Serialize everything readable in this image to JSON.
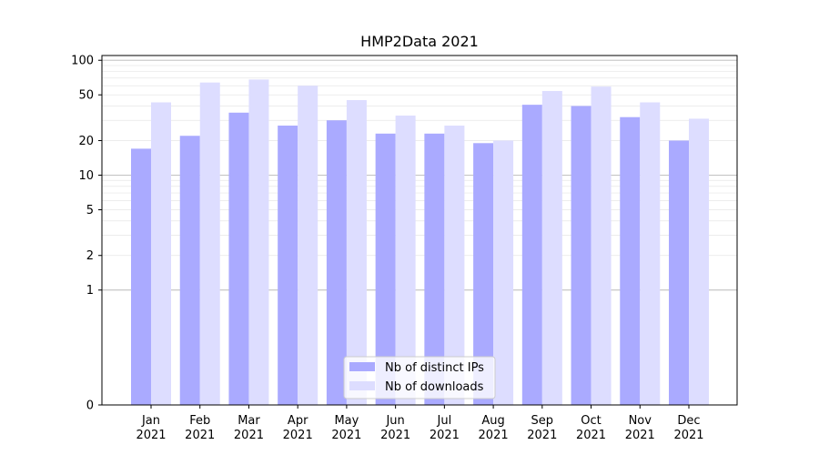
{
  "chart_data": {
    "type": "bar",
    "title": "HMP2Data 2021",
    "xlabel": "",
    "ylabel": "",
    "yscale": "symlog",
    "ylim": [
      0,
      110
    ],
    "yticks": [
      0,
      1,
      2,
      5,
      10,
      20,
      50,
      100
    ],
    "categories": [
      "Jan\n2021",
      "Feb\n2021",
      "Mar\n2021",
      "Apr\n2021",
      "May\n2021",
      "Jun\n2021",
      "Jul\n2021",
      "Aug\n2021",
      "Sep\n2021",
      "Oct\n2021",
      "Nov\n2021",
      "Dec\n2021"
    ],
    "series": [
      {
        "name": "Nb of distinct IPs",
        "color": "#aaaaff",
        "values": [
          17,
          22,
          35,
          27,
          30,
          23,
          23,
          19,
          41,
          40,
          32,
          20
        ]
      },
      {
        "name": "Nb of downloads",
        "color": "#ddddff",
        "values": [
          43,
          64,
          68,
          60,
          45,
          33,
          27,
          20,
          54,
          59,
          43,
          31
        ]
      }
    ],
    "grid": true,
    "legend_position": "lower-center"
  }
}
